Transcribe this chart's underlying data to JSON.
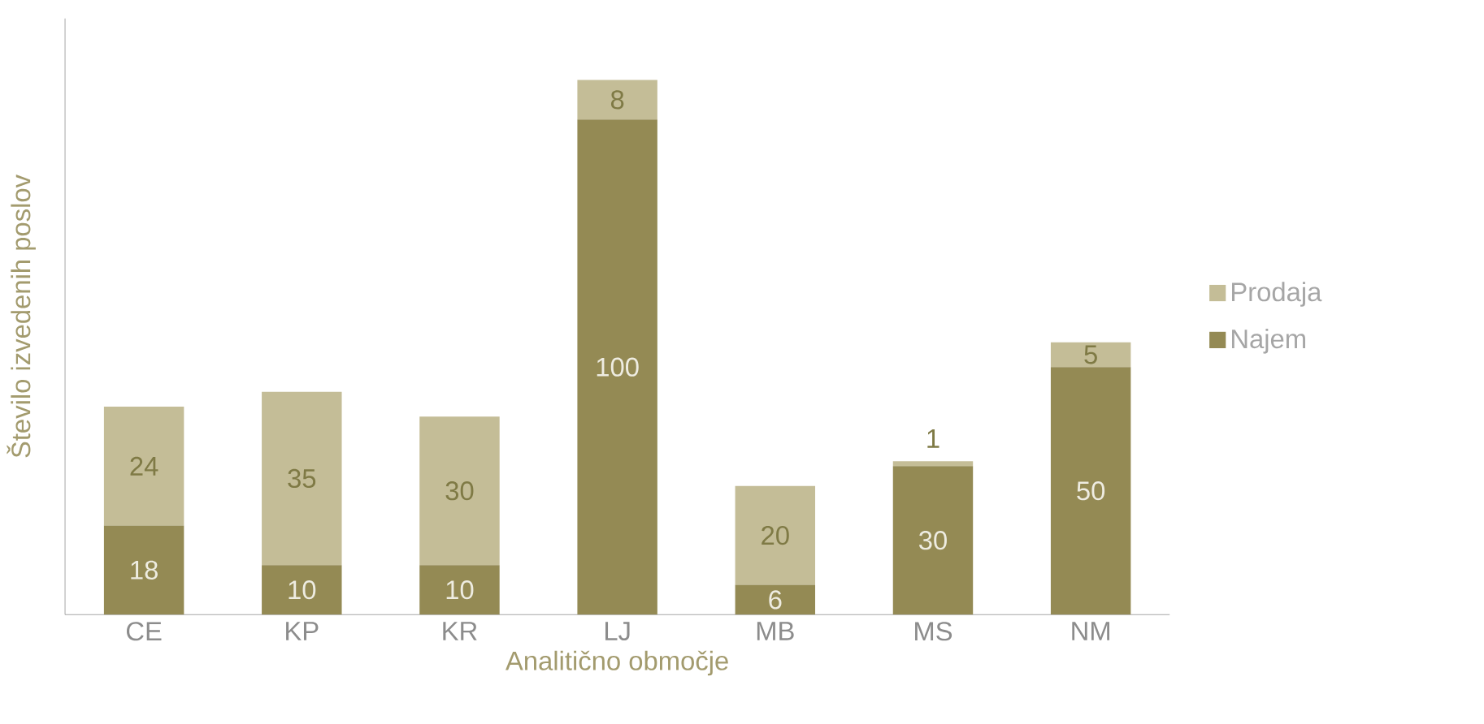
{
  "chart_data": {
    "type": "bar",
    "stacked": true,
    "data_labels": true,
    "legend": "right",
    "xlabel": "Analitično območje",
    "ylabel": "Število izvedenih poslov",
    "categories": [
      "CE",
      "KP",
      "KR",
      "LJ",
      "MB",
      "MS",
      "NM"
    ],
    "series": [
      {
        "name": "Najem",
        "color": "#948a54",
        "values": [
          18,
          10,
          10,
          100,
          6,
          30,
          50
        ]
      },
      {
        "name": "Prodaja",
        "color": "#c4bd97",
        "values": [
          24,
          35,
          30,
          8,
          20,
          1,
          5
        ]
      }
    ]
  }
}
